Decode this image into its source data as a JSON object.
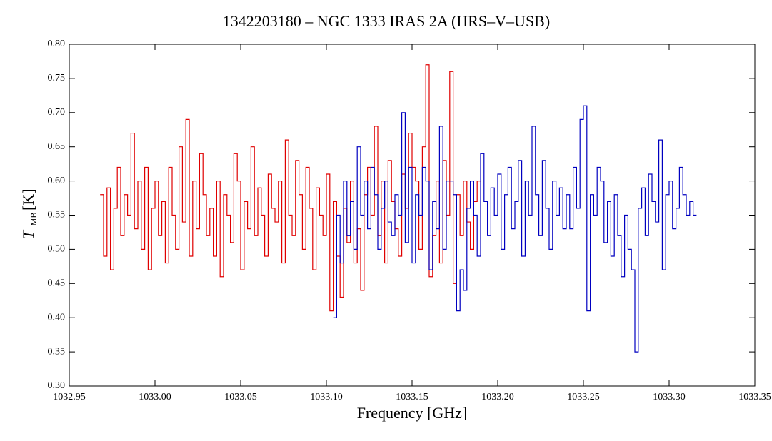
{
  "chart_data": {
    "type": "step",
    "title": "1342203180 – NGC 1333 IRAS 2A (HRS–V–USB)",
    "xlabel": "Frequency [GHz]",
    "ylabel": "T",
    "ylabel_sub": "MB",
    "ylabel_unit": "[K]",
    "xlim": [
      1032.95,
      1033.35
    ],
    "ylim": [
      0.3,
      0.8
    ],
    "xticks": [
      1032.95,
      {
        "value": 1033,
        "label": "1033.00"
      },
      1033.05,
      {
        "value": 1033.1,
        "label": "1033.10"
      },
      1033.15,
      {
        "value": 1033.2,
        "label": "1033.20"
      },
      1033.25,
      {
        "value": 1033.3,
        "label": "1033.30"
      },
      1033.35
    ],
    "yticks": [
      {
        "value": 0.3,
        "label": "0.30"
      },
      0.35,
      {
        "value": 0.4,
        "label": "0.40"
      },
      0.45,
      {
        "value": 0.5,
        "label": "0.50"
      },
      0.55,
      {
        "value": 0.6,
        "label": "0.60"
      },
      0.65,
      {
        "value": 0.7,
        "label": "0.70"
      },
      0.75,
      {
        "value": 0.8,
        "label": "0.80"
      }
    ],
    "series": [
      {
        "color": "#e00000",
        "x": [
          1032.968,
          1032.97,
          1032.972,
          1032.974,
          1032.976,
          1032.978,
          1032.98,
          1032.982,
          1032.984,
          1032.986,
          1032.988,
          1032.99,
          1032.992,
          1032.994,
          1032.996,
          1032.998,
          1033.0,
          1033.002,
          1033.004,
          1033.006,
          1033.008,
          1033.01,
          1033.012,
          1033.014,
          1033.016,
          1033.018,
          1033.02,
          1033.022,
          1033.024,
          1033.026,
          1033.028,
          1033.03,
          1033.032,
          1033.034,
          1033.036,
          1033.038,
          1033.04,
          1033.042,
          1033.044,
          1033.046,
          1033.048,
          1033.05,
          1033.052,
          1033.054,
          1033.056,
          1033.058,
          1033.06,
          1033.062,
          1033.064,
          1033.066,
          1033.068,
          1033.07,
          1033.072,
          1033.074,
          1033.076,
          1033.078,
          1033.08,
          1033.082,
          1033.084,
          1033.086,
          1033.088,
          1033.09,
          1033.092,
          1033.094,
          1033.096,
          1033.098,
          1033.1,
          1033.102,
          1033.104,
          1033.106,
          1033.108,
          1033.11,
          1033.112,
          1033.114,
          1033.116,
          1033.118,
          1033.12,
          1033.122,
          1033.124,
          1033.126,
          1033.128,
          1033.13,
          1033.132,
          1033.134,
          1033.136,
          1033.138,
          1033.14,
          1033.142,
          1033.144,
          1033.146,
          1033.148,
          1033.15,
          1033.152,
          1033.154,
          1033.156,
          1033.158,
          1033.16,
          1033.162,
          1033.164,
          1033.166,
          1033.168,
          1033.17,
          1033.172,
          1033.174,
          1033.176,
          1033.178,
          1033.18,
          1033.182,
          1033.184,
          1033.186,
          1033.188
        ],
        "values": [
          0.58,
          0.49,
          0.59,
          0.47,
          0.56,
          0.62,
          0.52,
          0.58,
          0.55,
          0.67,
          0.53,
          0.6,
          0.5,
          0.62,
          0.47,
          0.56,
          0.6,
          0.52,
          0.57,
          0.48,
          0.62,
          0.55,
          0.5,
          0.65,
          0.54,
          0.69,
          0.49,
          0.6,
          0.53,
          0.64,
          0.58,
          0.52,
          0.56,
          0.49,
          0.6,
          0.46,
          0.58,
          0.55,
          0.51,
          0.64,
          0.6,
          0.47,
          0.57,
          0.53,
          0.65,
          0.52,
          0.59,
          0.55,
          0.49,
          0.61,
          0.56,
          0.54,
          0.6,
          0.48,
          0.66,
          0.55,
          0.52,
          0.63,
          0.58,
          0.5,
          0.62,
          0.56,
          0.47,
          0.59,
          0.55,
          0.52,
          0.61,
          0.41,
          0.57,
          0.49,
          0.43,
          0.56,
          0.51,
          0.6,
          0.48,
          0.53,
          0.44,
          0.58,
          0.62,
          0.55,
          0.68,
          0.52,
          0.6,
          0.48,
          0.63,
          0.57,
          0.53,
          0.49,
          0.61,
          0.56,
          0.67,
          0.62,
          0.6,
          0.5,
          0.65,
          0.77,
          0.46,
          0.52,
          0.6,
          0.48,
          0.63,
          0.55,
          0.76,
          0.45,
          0.58,
          0.52,
          0.6,
          0.54,
          0.5,
          0.57,
          0.6
        ]
      },
      {
        "color": "#0000c0",
        "x": [
          1033.104,
          1033.106,
          1033.108,
          1033.11,
          1033.112,
          1033.114,
          1033.116,
          1033.118,
          1033.12,
          1033.122,
          1033.124,
          1033.126,
          1033.128,
          1033.13,
          1033.132,
          1033.134,
          1033.136,
          1033.138,
          1033.14,
          1033.142,
          1033.144,
          1033.146,
          1033.148,
          1033.15,
          1033.152,
          1033.154,
          1033.156,
          1033.158,
          1033.16,
          1033.162,
          1033.164,
          1033.166,
          1033.168,
          1033.17,
          1033.172,
          1033.174,
          1033.176,
          1033.178,
          1033.18,
          1033.182,
          1033.184,
          1033.186,
          1033.188,
          1033.19,
          1033.192,
          1033.194,
          1033.196,
          1033.198,
          1033.2,
          1033.202,
          1033.204,
          1033.206,
          1033.208,
          1033.21,
          1033.212,
          1033.214,
          1033.216,
          1033.218,
          1033.22,
          1033.222,
          1033.224,
          1033.226,
          1033.228,
          1033.23,
          1033.232,
          1033.234,
          1033.236,
          1033.238,
          1033.24,
          1033.242,
          1033.244,
          1033.246,
          1033.248,
          1033.25,
          1033.252,
          1033.254,
          1033.256,
          1033.258,
          1033.26,
          1033.262,
          1033.264,
          1033.266,
          1033.268,
          1033.27,
          1033.272,
          1033.274,
          1033.276,
          1033.278,
          1033.28,
          1033.282,
          1033.284,
          1033.286,
          1033.288,
          1033.29,
          1033.292,
          1033.294,
          1033.296,
          1033.298,
          1033.3,
          1033.302,
          1033.304,
          1033.306,
          1033.308,
          1033.31,
          1033.312,
          1033.314
        ],
        "values": [
          0.4,
          0.55,
          0.48,
          0.6,
          0.52,
          0.57,
          0.5,
          0.65,
          0.55,
          0.6,
          0.53,
          0.62,
          0.58,
          0.5,
          0.56,
          0.6,
          0.54,
          0.52,
          0.58,
          0.55,
          0.7,
          0.51,
          0.62,
          0.48,
          0.58,
          0.55,
          0.62,
          0.6,
          0.47,
          0.57,
          0.53,
          0.68,
          0.5,
          0.6,
          0.6,
          0.58,
          0.41,
          0.47,
          0.44,
          0.56,
          0.6,
          0.55,
          0.49,
          0.64,
          0.57,
          0.52,
          0.59,
          0.55,
          0.61,
          0.5,
          0.58,
          0.62,
          0.53,
          0.57,
          0.63,
          0.49,
          0.6,
          0.55,
          0.68,
          0.58,
          0.52,
          0.63,
          0.56,
          0.5,
          0.6,
          0.55,
          0.59,
          0.53,
          0.58,
          0.53,
          0.62,
          0.56,
          0.69,
          0.71,
          0.41,
          0.58,
          0.55,
          0.62,
          0.6,
          0.51,
          0.57,
          0.49,
          0.58,
          0.52,
          0.46,
          0.55,
          0.5,
          0.47,
          0.35,
          0.56,
          0.59,
          0.52,
          0.61,
          0.57,
          0.54,
          0.66,
          0.47,
          0.58,
          0.6,
          0.53,
          0.56,
          0.62,
          0.58,
          0.55,
          0.57,
          0.55
        ]
      }
    ]
  }
}
